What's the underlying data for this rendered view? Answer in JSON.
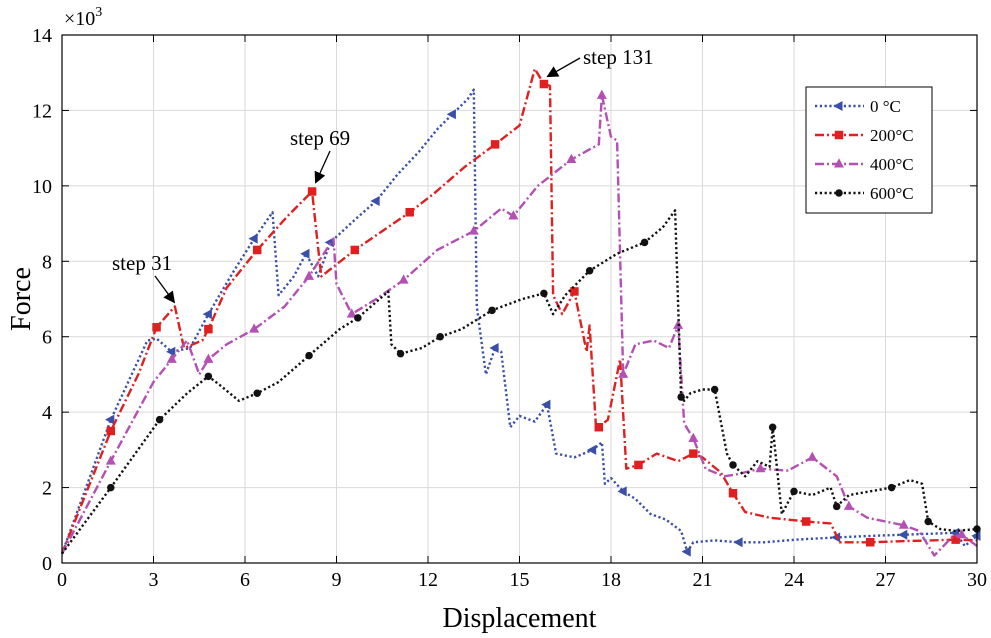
{
  "chart_data": {
    "type": "line",
    "title": "",
    "xlabel": "Displacement",
    "ylabel": "Force",
    "xlim": [
      0,
      30
    ],
    "ylim": [
      0,
      14
    ],
    "xticks": [
      0,
      3,
      6,
      9,
      12,
      15,
      18,
      21,
      24,
      27,
      30
    ],
    "yticks": [
      0,
      2,
      4,
      6,
      8,
      10,
      12,
      14
    ],
    "y_multiplier": {
      "base": "×10",
      "exponent": "3"
    },
    "grid": true,
    "legend_position": "top-right",
    "series": [
      {
        "name": "0 °C",
        "color": "#3a4fa8",
        "dash": "dotted",
        "marker": "triangle-left",
        "x": [
          0,
          1.6,
          2.8,
          3.1,
          3.6,
          4.2,
          4.8,
          5.6,
          6.3,
          6.9,
          7.1,
          7.6,
          8.0,
          8.4,
          8.8,
          9.6,
          10.3,
          11.0,
          11.7,
          12.3,
          12.8,
          13.3,
          13.5,
          13.6,
          13.9,
          14.2,
          14.4,
          14.7,
          15.0,
          15.5,
          15.9,
          16.2,
          16.8,
          17.4,
          17.7,
          17.8,
          18.0,
          18.4,
          18.8,
          19.3,
          19.8,
          20.3,
          20.5,
          20.7,
          21.4,
          22.2,
          23.0,
          24.1,
          25.4,
          26.6,
          27.6,
          28.6,
          29.3,
          29.6,
          30.0
        ],
        "values": [
          0.25,
          3.8,
          5.9,
          5.95,
          5.6,
          5.7,
          6.6,
          7.7,
          8.6,
          9.3,
          7.1,
          7.6,
          8.2,
          7.6,
          8.5,
          9.1,
          9.6,
          10.3,
          10.9,
          11.5,
          11.9,
          12.3,
          12.55,
          6.8,
          5.0,
          5.7,
          5.6,
          3.6,
          3.9,
          3.75,
          4.2,
          2.9,
          2.8,
          3.0,
          3.2,
          2.1,
          2.25,
          1.9,
          1.7,
          1.3,
          1.15,
          0.85,
          0.3,
          0.55,
          0.6,
          0.55,
          0.55,
          0.62,
          0.68,
          0.72,
          0.75,
          0.78,
          0.8,
          0.45,
          0.72
        ],
        "marker_indices": [
          1,
          4,
          6,
          8,
          12,
          14,
          16,
          20,
          25,
          30,
          33,
          37,
          42,
          45,
          48,
          50,
          52,
          54
        ]
      },
      {
        "name": "200°C",
        "color": "#e02020",
        "dash": "dash-dot",
        "marker": "square",
        "x": [
          0,
          1.6,
          2.5,
          3.1,
          3.7,
          4.0,
          4.6,
          4.8,
          5.4,
          6.4,
          7.4,
          8.2,
          8.35,
          8.5,
          9.6,
          10.5,
          11.4,
          12.2,
          13.2,
          14.2,
          15.0,
          15.5,
          15.8,
          16.0,
          16.1,
          16.4,
          16.8,
          17.2,
          17.3,
          17.5,
          17.6,
          17.9,
          18.3,
          18.5,
          18.9,
          19.5,
          20.2,
          20.7,
          21.0,
          21.6,
          22.0,
          22.4,
          23.2,
          24.4,
          25.2,
          25.5,
          26.5,
          27.6,
          28.5,
          29.3,
          30.0
        ],
        "values": [
          0.25,
          3.5,
          5.0,
          6.25,
          6.8,
          5.7,
          5.9,
          6.2,
          7.3,
          8.3,
          9.2,
          9.85,
          8.7,
          7.6,
          8.3,
          8.8,
          9.3,
          9.8,
          10.5,
          11.1,
          11.6,
          13.1,
          12.7,
          12.65,
          7.1,
          6.6,
          7.2,
          5.6,
          6.3,
          3.7,
          3.6,
          3.8,
          5.4,
          2.5,
          2.6,
          2.9,
          2.7,
          2.9,
          2.8,
          2.4,
          1.85,
          1.35,
          1.2,
          1.1,
          1.05,
          0.55,
          0.55,
          0.58,
          0.6,
          0.62,
          0.6
        ],
        "marker_indices": [
          1,
          3,
          7,
          9,
          11,
          14,
          16,
          19,
          22,
          26,
          30,
          34,
          37,
          40,
          43,
          46,
          49
        ]
      },
      {
        "name": "400°C",
        "color": "#b450b4",
        "dash": "dash-dot",
        "marker": "triangle-up",
        "x": [
          0,
          1.6,
          3.0,
          3.6,
          4.1,
          4.5,
          4.8,
          5.4,
          6.3,
          7.3,
          8.1,
          8.9,
          9.0,
          9.5,
          10.3,
          11.2,
          12.3,
          13.5,
          14.4,
          14.8,
          15.6,
          16.7,
          17.6,
          17.7,
          18.0,
          18.2,
          18.4,
          18.8,
          19.4,
          19.9,
          20.2,
          20.4,
          20.7,
          21.1,
          21.7,
          22.1,
          22.9,
          23.8,
          24.6,
          25.4,
          25.8,
          26.4,
          27.0,
          27.6,
          28.1,
          28.6,
          29.2,
          29.5,
          30.0
        ],
        "values": [
          0.25,
          2.7,
          4.8,
          5.4,
          5.9,
          5.0,
          5.4,
          5.8,
          6.2,
          6.8,
          7.6,
          8.6,
          7.4,
          6.6,
          7.0,
          7.5,
          8.3,
          8.8,
          9.4,
          9.2,
          10.0,
          10.7,
          11.1,
          12.4,
          11.3,
          11.2,
          5.0,
          5.8,
          5.9,
          5.7,
          6.3,
          3.7,
          3.3,
          2.5,
          2.3,
          2.35,
          2.5,
          2.45,
          2.8,
          2.3,
          1.5,
          1.2,
          1.1,
          1.0,
          0.85,
          0.2,
          0.7,
          0.75,
          0.45
        ],
        "marker_indices": [
          1,
          3,
          6,
          8,
          10,
          13,
          15,
          17,
          19,
          21,
          23,
          26,
          30,
          32,
          36,
          38,
          40,
          43,
          47
        ]
      },
      {
        "name": "600°C",
        "color": "#111111",
        "dash": "dotted",
        "marker": "circle",
        "x": [
          0,
          1.6,
          3.2,
          4.1,
          4.8,
          5.2,
          5.8,
          6.4,
          7.1,
          8.1,
          9.1,
          9.7,
          10.7,
          10.8,
          11.1,
          11.8,
          12.4,
          13.1,
          14.1,
          15.1,
          15.8,
          16.1,
          16.5,
          17.3,
          18.2,
          19.1,
          19.7,
          20.1,
          20.3,
          20.4,
          20.6,
          21.0,
          21.4,
          21.8,
          22.0,
          22.4,
          22.8,
          23.2,
          23.3,
          23.6,
          24.0,
          24.6,
          25.2,
          25.4,
          25.8,
          26.5,
          27.2,
          27.8,
          28.2,
          28.4,
          28.8,
          29.3,
          30.0
        ],
        "values": [
          0.25,
          2.0,
          3.8,
          4.5,
          4.95,
          4.7,
          4.3,
          4.5,
          4.8,
          5.5,
          6.2,
          6.5,
          7.2,
          5.8,
          5.55,
          5.7,
          6.0,
          6.2,
          6.7,
          7.0,
          7.15,
          6.6,
          7.1,
          7.75,
          8.2,
          8.5,
          8.9,
          9.35,
          4.4,
          4.3,
          4.5,
          4.6,
          4.6,
          2.9,
          2.6,
          2.3,
          2.7,
          2.55,
          3.6,
          1.3,
          1.9,
          1.8,
          2.0,
          1.5,
          1.8,
          1.9,
          2.0,
          2.2,
          2.1,
          1.1,
          0.9,
          0.85,
          0.9
        ],
        "marker_indices": [
          1,
          2,
          4,
          7,
          9,
          11,
          14,
          16,
          18,
          20,
          23,
          25,
          28,
          32,
          34,
          38,
          40,
          43,
          46,
          49,
          52
        ]
      }
    ],
    "annotations": [
      {
        "text": "step 31",
        "target_x": 3.65,
        "target_y": 6.75
      },
      {
        "text": "step 69",
        "target_x": 8.25,
        "target_y": 9.95
      },
      {
        "text": "step 131",
        "target_x": 15.85,
        "target_y": 12.95
      }
    ]
  }
}
